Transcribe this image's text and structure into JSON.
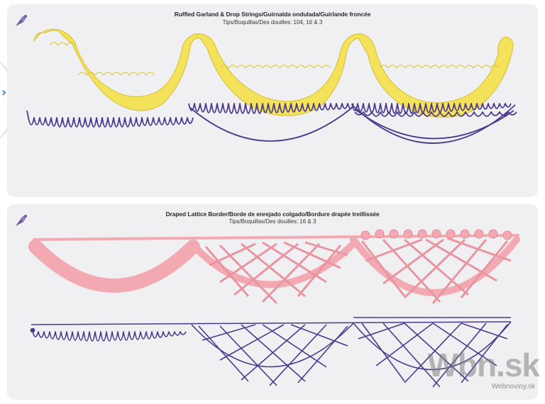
{
  "panels": [
    {
      "title": "Ruffled Garland & Drop Strings/Guirnalda ondulada/Guirlande froncée",
      "subtitle": "Tips/Boquillas/Des douilles: 104, 16 & 3"
    },
    {
      "title": "Draped Lattice Border/Borde de enrejado colgado/Bordure drapée treillissée",
      "subtitle": "Tips/Boquillas/Des douilles: 16 & 3"
    }
  ],
  "watermark": {
    "brand": "Wbn.sk",
    "site": "Webnoviny.sk"
  },
  "colors": {
    "icing_yellow": "#f4e35a",
    "icing_pink": "#f2a9b2",
    "guide_line": "#4b3a8c",
    "logo_purple": "#6e5ba8"
  },
  "icons": {
    "logo": "piping-bag-logo-icon",
    "nav": "chevron-right-icon"
  }
}
